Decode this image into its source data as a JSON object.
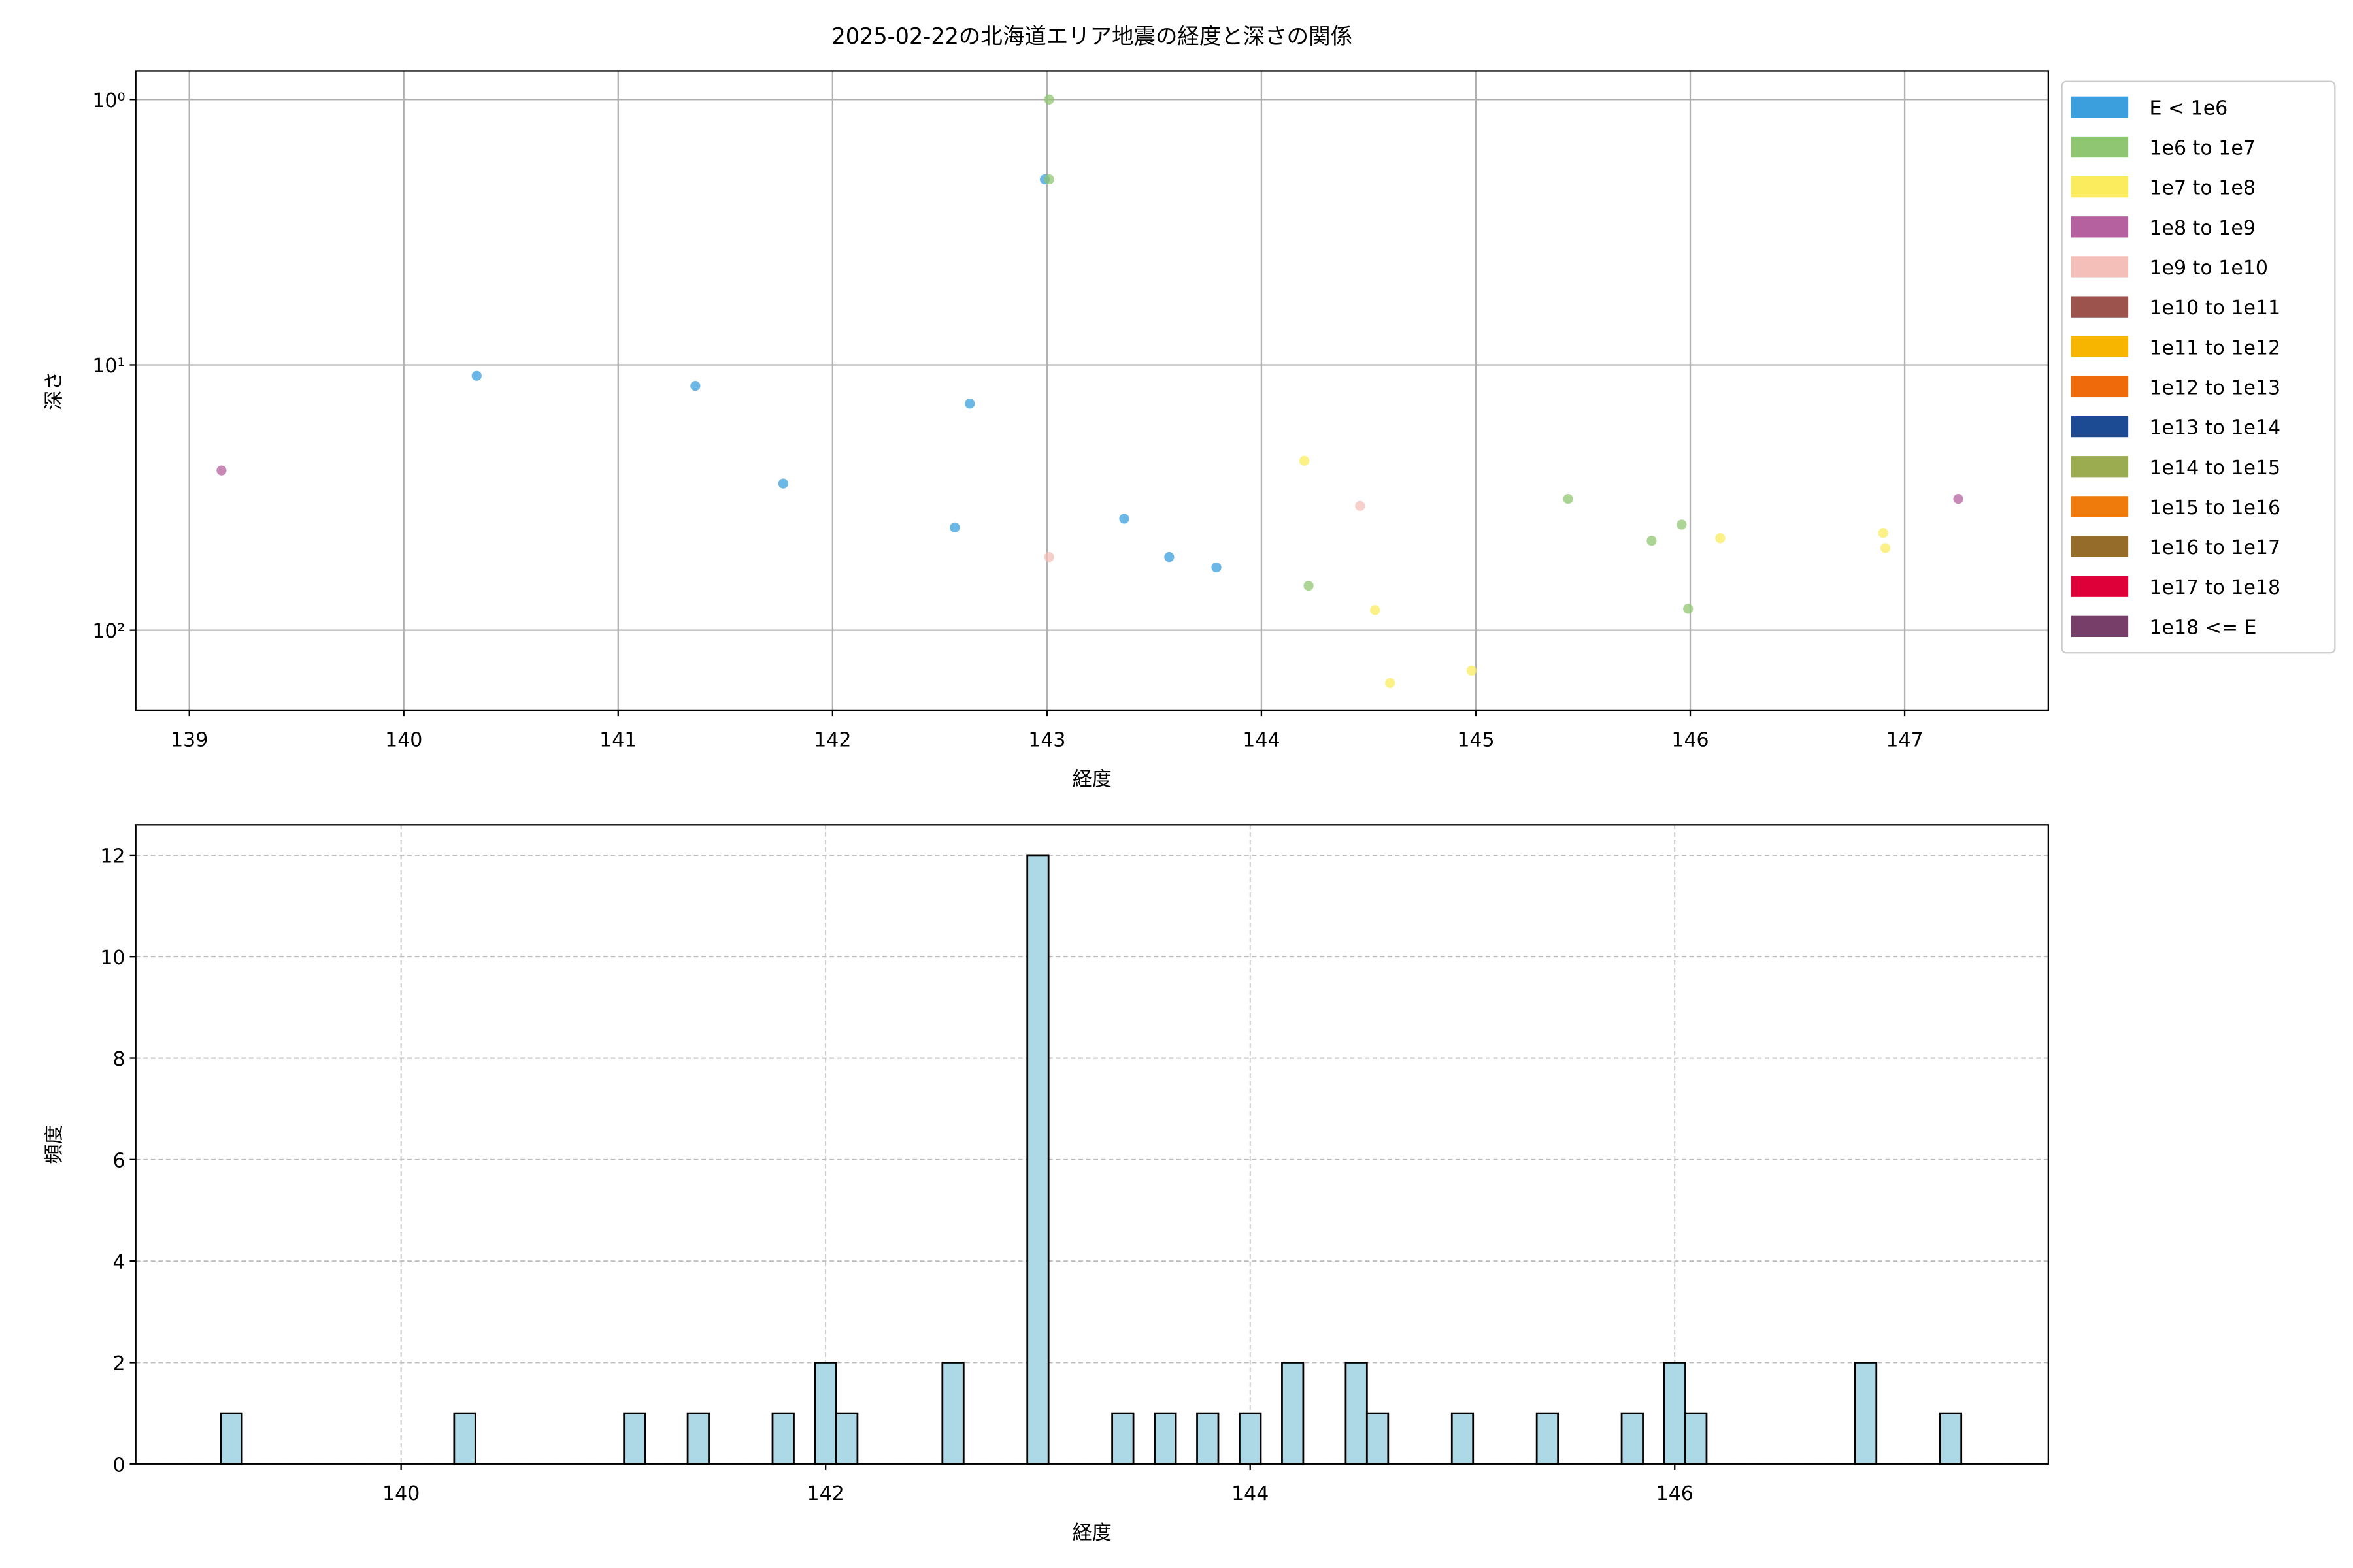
{
  "chart_data": [
    {
      "type": "scatter",
      "title": "2025-02-22の北海道エリア地震の経度と深さの関係",
      "xlabel": "経度",
      "ylabel": "深さ",
      "xlim": [
        138.75,
        147.67
      ],
      "xticks": [
        139,
        140,
        141,
        142,
        143,
        144,
        145,
        146,
        147
      ],
      "yscale": "log",
      "y_inverted": true,
      "ylim": [
        0.78,
        200
      ],
      "yticks": [
        {
          "value": 1,
          "label": "10⁰"
        },
        {
          "value": 10,
          "label": "10¹"
        },
        {
          "value": 100,
          "label": "10²"
        }
      ],
      "grid": true,
      "legend": "outside right",
      "series": [
        {
          "name": "E < 1e6",
          "color": "#3a9fdc",
          "x": [
            140.34,
            141.36,
            141.77,
            142.64,
            142.57,
            142.99,
            143.36,
            143.57,
            143.79
          ],
          "values": [
            11,
            12,
            28,
            14,
            41,
            2,
            38,
            53,
            58
          ]
        },
        {
          "name": "1e6 to 1e7",
          "color": "#8fc672",
          "x": [
            143.01,
            143.01,
            144.22,
            145.43,
            145.82,
            145.96,
            145.99
          ],
          "values": [
            2,
            1,
            68,
            32,
            46,
            40,
            83
          ]
        },
        {
          "name": "1e7 to 1e8",
          "color": "#fbec5d",
          "x": [
            144.2,
            144.53,
            144.6,
            144.98,
            146.14,
            146.9,
            146.91
          ],
          "values": [
            23,
            84,
            158,
            142,
            45,
            43,
            49
          ]
        },
        {
          "name": "1e8 to 1e9",
          "color": "#b5619f",
          "x": [
            139.15,
            147.25
          ],
          "values": [
            25,
            32
          ]
        },
        {
          "name": "1e9 to 1e10",
          "color": "#f4bfb8",
          "x": [
            143.01,
            144.46
          ],
          "values": [
            53,
            34
          ]
        },
        {
          "name": "1e10 to 1e11",
          "color": "#9c524d",
          "x": [],
          "values": []
        },
        {
          "name": "1e11 to 1e12",
          "color": "#f8b500",
          "x": [],
          "values": []
        },
        {
          "name": "1e12 to 1e13",
          "color": "#ee6a0a",
          "x": [],
          "values": []
        },
        {
          "name": "1e13 to 1e14",
          "color": "#1c4b93",
          "x": [],
          "values": []
        },
        {
          "name": "1e14 to 1e15",
          "color": "#9bac50",
          "x": [],
          "values": []
        },
        {
          "name": "1e15 to 1e16",
          "color": "#ef7b0c",
          "x": [],
          "values": []
        },
        {
          "name": "1e16 to 1e17",
          "color": "#956c2a",
          "x": [],
          "values": []
        },
        {
          "name": "1e17 to 1e18",
          "color": "#de0039",
          "x": [],
          "values": []
        },
        {
          "name": "1e18 <= E",
          "color": "#773e6a",
          "x": [],
          "values": []
        }
      ]
    },
    {
      "type": "histogram",
      "xlabel": "経度",
      "ylabel": "頻度",
      "xlim": [
        138.75,
        147.76
      ],
      "xticks": [
        140,
        142,
        144,
        146
      ],
      "ylim": [
        0,
        12.6
      ],
      "yticks": [
        0,
        2,
        4,
        6,
        8,
        10,
        12
      ],
      "grid": true,
      "grid_style": "dashed",
      "color": "#add8e6",
      "edgecolor": "#000000",
      "bins": [
        139.15,
        139.25,
        139.35,
        139.45,
        139.55,
        139.65,
        139.75,
        139.85,
        139.95,
        140.05,
        140.15,
        140.25,
        140.35,
        140.45,
        140.55,
        140.65,
        140.75,
        140.85,
        140.95,
        141.05,
        141.15,
        141.25,
        141.35,
        141.45,
        141.55,
        141.65,
        141.75,
        141.85,
        141.95,
        142.05,
        142.15,
        142.25,
        142.35,
        142.45,
        142.55,
        142.65,
        142.75,
        142.85,
        142.95,
        143.05,
        143.15,
        143.25,
        143.35,
        143.45,
        143.55,
        143.65,
        143.75,
        143.85,
        143.95,
        144.05,
        144.15,
        144.25,
        144.35,
        144.45,
        144.55,
        144.65,
        144.75,
        144.85,
        144.95,
        145.05,
        145.15,
        145.25,
        145.35,
        145.45,
        145.55,
        145.65,
        145.75,
        145.85,
        145.95,
        146.05,
        146.15,
        146.25,
        146.35,
        146.45,
        146.55,
        146.65,
        146.75,
        146.85,
        146.95,
        147.05,
        147.15,
        147.25,
        147.35
      ],
      "values": [
        1,
        0,
        0,
        0,
        0,
        0,
        0,
        0,
        0,
        0,
        0,
        1,
        0,
        0,
        0,
        0,
        0,
        0,
        0,
        1,
        0,
        0,
        1,
        0,
        0,
        0,
        1,
        0,
        2,
        1,
        0,
        0,
        0,
        0,
        2,
        0,
        0,
        0,
        12,
        0,
        0,
        0,
        1,
        0,
        1,
        0,
        1,
        0,
        1,
        0,
        2,
        0,
        0,
        2,
        1,
        0,
        0,
        0,
        1,
        0,
        0,
        0,
        1,
        0,
        0,
        0,
        1,
        0,
        2,
        1,
        0,
        0,
        0,
        0,
        0,
        0,
        0,
        2,
        0,
        0,
        0,
        1
      ]
    }
  ]
}
